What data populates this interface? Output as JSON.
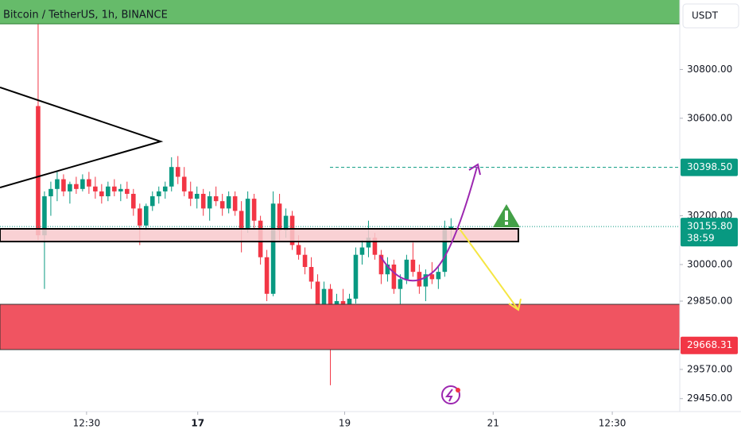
{
  "chart_data": {
    "type": "candlestick",
    "title": "Bitcoin / TetherUS, 1h, BINANCE",
    "currency": "USDT",
    "up_color": "#089981",
    "down_color": "#f23645",
    "x": [
      12,
      14,
      16,
      18,
      20,
      22,
      24,
      26,
      28,
      30,
      32,
      34,
      36,
      38,
      40,
      42,
      44,
      46,
      48,
      50,
      52,
      54,
      56,
      58,
      60,
      62,
      64,
      66,
      68,
      70,
      72,
      74,
      76,
      78,
      80,
      82,
      84,
      86,
      88,
      90,
      92,
      94,
      96,
      98,
      100,
      102,
      104,
      106,
      108,
      110,
      112,
      114,
      116,
      118,
      120,
      122,
      124,
      126,
      128,
      130,
      132,
      134,
      136,
      138,
      140,
      142
    ],
    "open": [
      30650,
      30120,
      30280,
      30310,
      30350,
      30300,
      30330,
      30310,
      30350,
      30320,
      30300,
      30280,
      30320,
      30300,
      30310,
      30290,
      30230,
      30160,
      30240,
      30280,
      30300,
      30320,
      30400,
      30360,
      30300,
      30270,
      30290,
      30230,
      30280,
      30260,
      30230,
      30280,
      30220,
      30150,
      30270,
      30180,
      30030,
      29880,
      30250,
      30140,
      30200,
      30080,
      30040,
      29990,
      29930,
      29780,
      29900,
      29700,
      29850,
      29760,
      29860,
      30040,
      30070,
      30110,
      30040,
      29960,
      30000,
      29900,
      29940,
      30020,
      29970,
      29910,
      29960,
      29940,
      29970,
      30150
    ],
    "high": [
      31085,
      30300,
      30340,
      30380,
      30370,
      30340,
      30360,
      30370,
      30380,
      30360,
      30330,
      30340,
      30350,
      30330,
      30340,
      30310,
      30250,
      30250,
      30300,
      30320,
      30340,
      30440,
      30445,
      30400,
      30340,
      30320,
      30310,
      30300,
      30320,
      30290,
      30300,
      30300,
      30260,
      30300,
      30290,
      30200,
      30060,
      30300,
      30290,
      30230,
      30220,
      30120,
      30070,
      30030,
      29960,
      29930,
      29920,
      29880,
      29900,
      29880,
      30070,
      30100,
      30180,
      30130,
      30060,
      30030,
      30020,
      29960,
      30040,
      30090,
      30000,
      29980,
      30010,
      29990,
      30180,
      30190
    ],
    "low": [
      30100,
      29900,
      30200,
      30260,
      30280,
      30250,
      30290,
      30300,
      30290,
      30270,
      30250,
      30260,
      30280,
      30260,
      30270,
      30200,
      30080,
      30140,
      30220,
      30250,
      30270,
      30300,
      30330,
      30280,
      30240,
      30230,
      30200,
      30180,
      30240,
      30200,
      30210,
      30200,
      30050,
      30130,
      30150,
      30000,
      29850,
      29870,
      30100,
      30110,
      30060,
      30020,
      29960,
      29900,
      29700,
      29720,
      29505,
      29680,
      29720,
      29740,
      29840,
      30000,
      30030,
      30020,
      29920,
      29930,
      29880,
      29800,
      29920,
      29950,
      29880,
      29850,
      29920,
      29900,
      29950,
      30100
    ],
    "close": [
      30120,
      30280,
      30310,
      30350,
      30300,
      30330,
      30310,
      30350,
      30320,
      30300,
      30280,
      30320,
      30300,
      30310,
      30290,
      30230,
      30160,
      30240,
      30280,
      30300,
      30320,
      30400,
      30360,
      30300,
      30270,
      30290,
      30230,
      30280,
      30260,
      30230,
      30280,
      30220,
      30150,
      30270,
      30180,
      30030,
      29880,
      30250,
      30140,
      30200,
      30080,
      30040,
      29990,
      29930,
      29780,
      29900,
      29700,
      29850,
      29760,
      29860,
      30040,
      30070,
      30110,
      30040,
      29960,
      30000,
      29900,
      29940,
      30020,
      29970,
      29910,
      29960,
      29940,
      29970,
      30150,
      30155.8
    ],
    "xlim": [
      0,
      214
    ],
    "xticks": [
      {
        "value": 27.25,
        "label": "12:30"
      },
      {
        "value": 62.25,
        "label": "17"
      },
      {
        "value": 108.5,
        "label": "19"
      },
      {
        "value": 155.25,
        "label": "21"
      },
      {
        "value": 192.75,
        "label": "12:30"
      }
    ],
    "ylim": [
      29397,
      31085
    ],
    "yticks": [
      {
        "value": 30800,
        "label": "30800.00"
      },
      {
        "value": 30600,
        "label": "30600.00"
      },
      {
        "value": 30200,
        "label": "30200.00"
      },
      {
        "value": 30000,
        "label": "30000.00"
      },
      {
        "value": 29850,
        "label": "29850.00"
      },
      {
        "value": 29570,
        "label": "29570.00"
      },
      {
        "value": 29450,
        "label": "29450.00"
      }
    ],
    "target_price": {
      "value": 30398.5,
      "label": "30398.50"
    },
    "last_price": {
      "value": 30155.8,
      "label": "30155.80"
    },
    "countdown": "38:59",
    "zone_price": {
      "value": 29668.31,
      "label": "29668.31"
    }
  }
}
